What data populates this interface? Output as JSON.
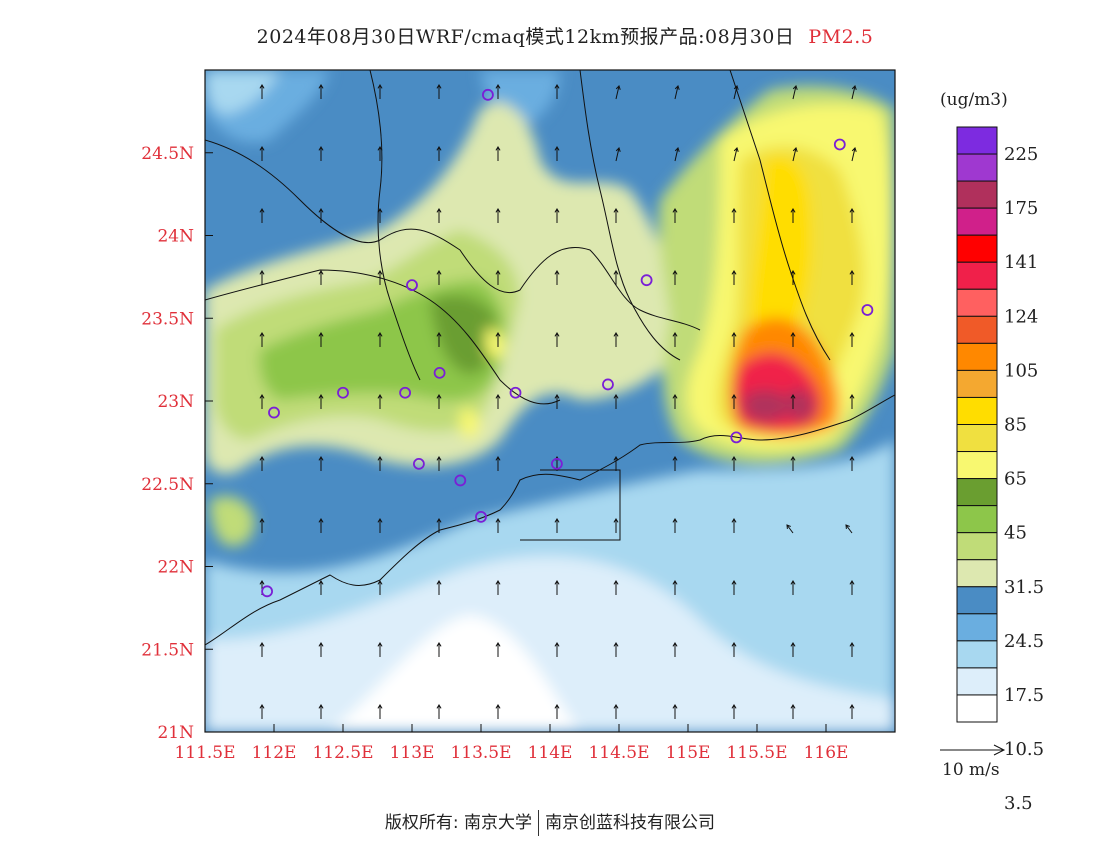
{
  "header": {
    "title": "2024年08月30日WRF/cmaq模式12km预报产品:08月30日",
    "variable": "PM2.5"
  },
  "map": {
    "x_ticks": [
      "111.5E",
      "112E",
      "112.5E",
      "113E",
      "113.5E",
      "114E",
      "114.5E",
      "115E",
      "115.5E",
      "116E"
    ],
    "y_ticks": [
      "24.5N",
      "24N",
      "23.5N",
      "23N",
      "22.5N",
      "22N",
      "21.5N",
      "21N"
    ],
    "x_range_lon": [
      111.5,
      116.5
    ],
    "y_range_lat": [
      21.0,
      25.0
    ],
    "city_markers": [
      {
        "lon": 113.55,
        "lat": 24.85
      },
      {
        "lon": 116.1,
        "lat": 24.55
      },
      {
        "lon": 114.7,
        "lat": 23.73
      },
      {
        "lon": 116.3,
        "lat": 23.55
      },
      {
        "lon": 113.0,
        "lat": 23.7
      },
      {
        "lon": 112.95,
        "lat": 23.05
      },
      {
        "lon": 113.2,
        "lat": 23.17
      },
      {
        "lon": 112.5,
        "lat": 23.05
      },
      {
        "lon": 112.0,
        "lat": 22.93
      },
      {
        "lon": 113.75,
        "lat": 23.05
      },
      {
        "lon": 114.42,
        "lat": 23.1
      },
      {
        "lon": 113.05,
        "lat": 22.62
      },
      {
        "lon": 113.35,
        "lat": 22.52
      },
      {
        "lon": 114.05,
        "lat": 22.62
      },
      {
        "lon": 113.5,
        "lat": 22.3
      },
      {
        "lon": 111.95,
        "lat": 21.85
      },
      {
        "lon": 115.35,
        "lat": 22.78
      }
    ]
  },
  "colorbar": {
    "unit": "(ug/m3)",
    "labels": [
      "225",
      "175",
      "141",
      "124",
      "105",
      "85",
      "65",
      "45",
      "31.5",
      "24.5",
      "17.5",
      "10.5",
      "3.5"
    ],
    "colors": [
      "#7d2be0",
      "#9f38d0",
      "#b0305c",
      "#d0208a",
      "#ff0000",
      "#f0204a",
      "#ff6060",
      "#f05a28",
      "#ff8800",
      "#f4a830",
      "#ffdd00",
      "#f0e040",
      "#f8f870",
      "#6a9e30",
      "#8dc64a",
      "#c0dc78",
      "#dde8b0",
      "#4a8cc4",
      "#6aaee0",
      "#a8d8f0",
      "#ddeefa",
      "#ffffff"
    ]
  },
  "wind": {
    "reference_label": "10 m/s"
  },
  "footer": {
    "left": "版权所有: 南京大学",
    "right": "南京创蓝科技有限公司"
  }
}
